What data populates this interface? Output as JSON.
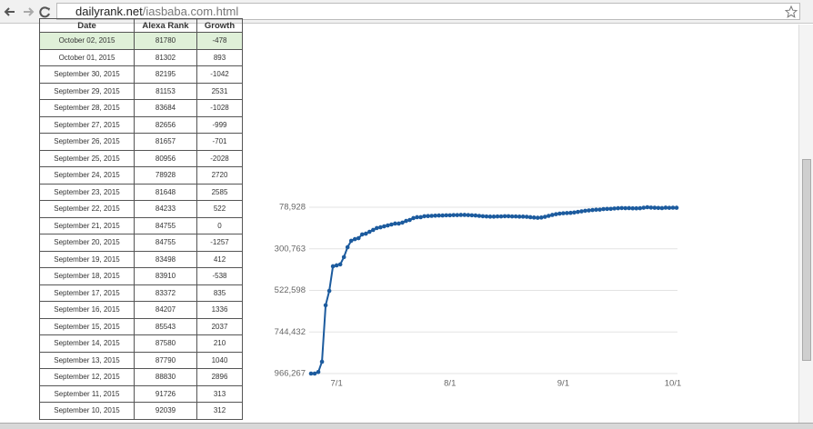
{
  "browser": {
    "url_host": "dailyrank.net",
    "url_path": "/iasbaba.com.html"
  },
  "table": {
    "header": [
      "Date",
      "Alexa Rank",
      "Growth"
    ],
    "rows": [
      [
        "October 02, 2015",
        "81780",
        "-478"
      ],
      [
        "October 01, 2015",
        "81302",
        "893"
      ],
      [
        "September 30, 2015",
        "82195",
        "-1042"
      ],
      [
        "September 29, 2015",
        "81153",
        "2531"
      ],
      [
        "September 28, 2015",
        "83684",
        "-1028"
      ],
      [
        "September 27, 2015",
        "82656",
        "-999"
      ],
      [
        "September 26, 2015",
        "81657",
        "-701"
      ],
      [
        "September 25, 2015",
        "80956",
        "-2028"
      ],
      [
        "September 24, 2015",
        "78928",
        "2720"
      ],
      [
        "September 23, 2015",
        "81648",
        "2585"
      ],
      [
        "September 22, 2015",
        "84233",
        "522"
      ],
      [
        "September 21, 2015",
        "84755",
        "0"
      ],
      [
        "September 20, 2015",
        "84755",
        "-1257"
      ],
      [
        "September 19, 2015",
        "83498",
        "412"
      ],
      [
        "September 18, 2015",
        "83910",
        "-538"
      ],
      [
        "September 17, 2015",
        "83372",
        "835"
      ],
      [
        "September 16, 2015",
        "84207",
        "1336"
      ],
      [
        "September 15, 2015",
        "85543",
        "2037"
      ],
      [
        "September 14, 2015",
        "87580",
        "210"
      ],
      [
        "September 13, 2015",
        "87790",
        "1040"
      ],
      [
        "September 12, 2015",
        "88830",
        "2896"
      ],
      [
        "September 11, 2015",
        "91726",
        "313"
      ],
      [
        "September 10, 2015",
        "92039",
        "312"
      ]
    ]
  },
  "chart_data": {
    "type": "line",
    "categories": [
      null,
      null,
      null,
      null,
      null,
      null,
      null,
      "7/1",
      null,
      null,
      null,
      null,
      null,
      null,
      null,
      null,
      null,
      null,
      null,
      null,
      null,
      null,
      null,
      null,
      null,
      null,
      null,
      null,
      null,
      null,
      null,
      null,
      null,
      null,
      null,
      null,
      null,
      null,
      "8/1",
      null,
      null,
      null,
      null,
      null,
      null,
      null,
      null,
      null,
      null,
      null,
      null,
      null,
      null,
      null,
      null,
      null,
      null,
      null,
      null,
      null,
      null,
      null,
      null,
      null,
      null,
      null,
      null,
      null,
      null,
      "9/1",
      null,
      null,
      null,
      null,
      null,
      null,
      null,
      null,
      null,
      null,
      null,
      null,
      null,
      null,
      null,
      null,
      null,
      null,
      null,
      null,
      null,
      null,
      null,
      null,
      null,
      null,
      null,
      null,
      null,
      "10/1",
      null
    ],
    "series": [
      {
        "color": "#1c5b9e",
        "values": [
          966267,
          966267,
          958000,
          903000,
          602000,
          525000,
          394000,
          389000,
          384000,
          345000,
          292000,
          258000,
          249000,
          244000,
          224000,
          220000,
          210000,
          200000,
          190000,
          186000,
          181000,
          176000,
          171000,
          166000,
          166000,
          161000,
          152000,
          147000,
          137000,
          132000,
          132000,
          127000,
          126000,
          125000,
          124000,
          123000,
          123000,
          122000,
          122000,
          121000,
          121000,
          120000,
          120000,
          121000,
          122000,
          123000,
          125000,
          127000,
          128000,
          129000,
          129000,
          128000,
          128000,
          127000,
          127000,
          128000,
          128000,
          129000,
          129000,
          130000,
          132000,
          134000,
          135000,
          134000,
          130000,
          125000,
          120000,
          116000,
          113000,
          111000,
          110000,
          109000,
          107000,
          104000,
          101000,
          98000,
          96000,
          94000,
          92039,
          91726,
          88830,
          87790,
          87580,
          85543,
          84207,
          83372,
          83910,
          83498,
          84755,
          84755,
          84233,
          81648,
          78928,
          80956,
          81657,
          82656,
          83684,
          81153,
          82195,
          81302,
          81780
        ]
      }
    ],
    "ylim": [
      966267,
      78928
    ],
    "yticks": [
      {
        "value": 78928,
        "label": "78,928"
      },
      {
        "value": 300763,
        "label": "300,763"
      },
      {
        "value": 522598,
        "label": "522,598"
      },
      {
        "value": 744432,
        "label": "744,432"
      },
      {
        "value": 966267,
        "label": "966,267"
      }
    ],
    "grid": true
  }
}
